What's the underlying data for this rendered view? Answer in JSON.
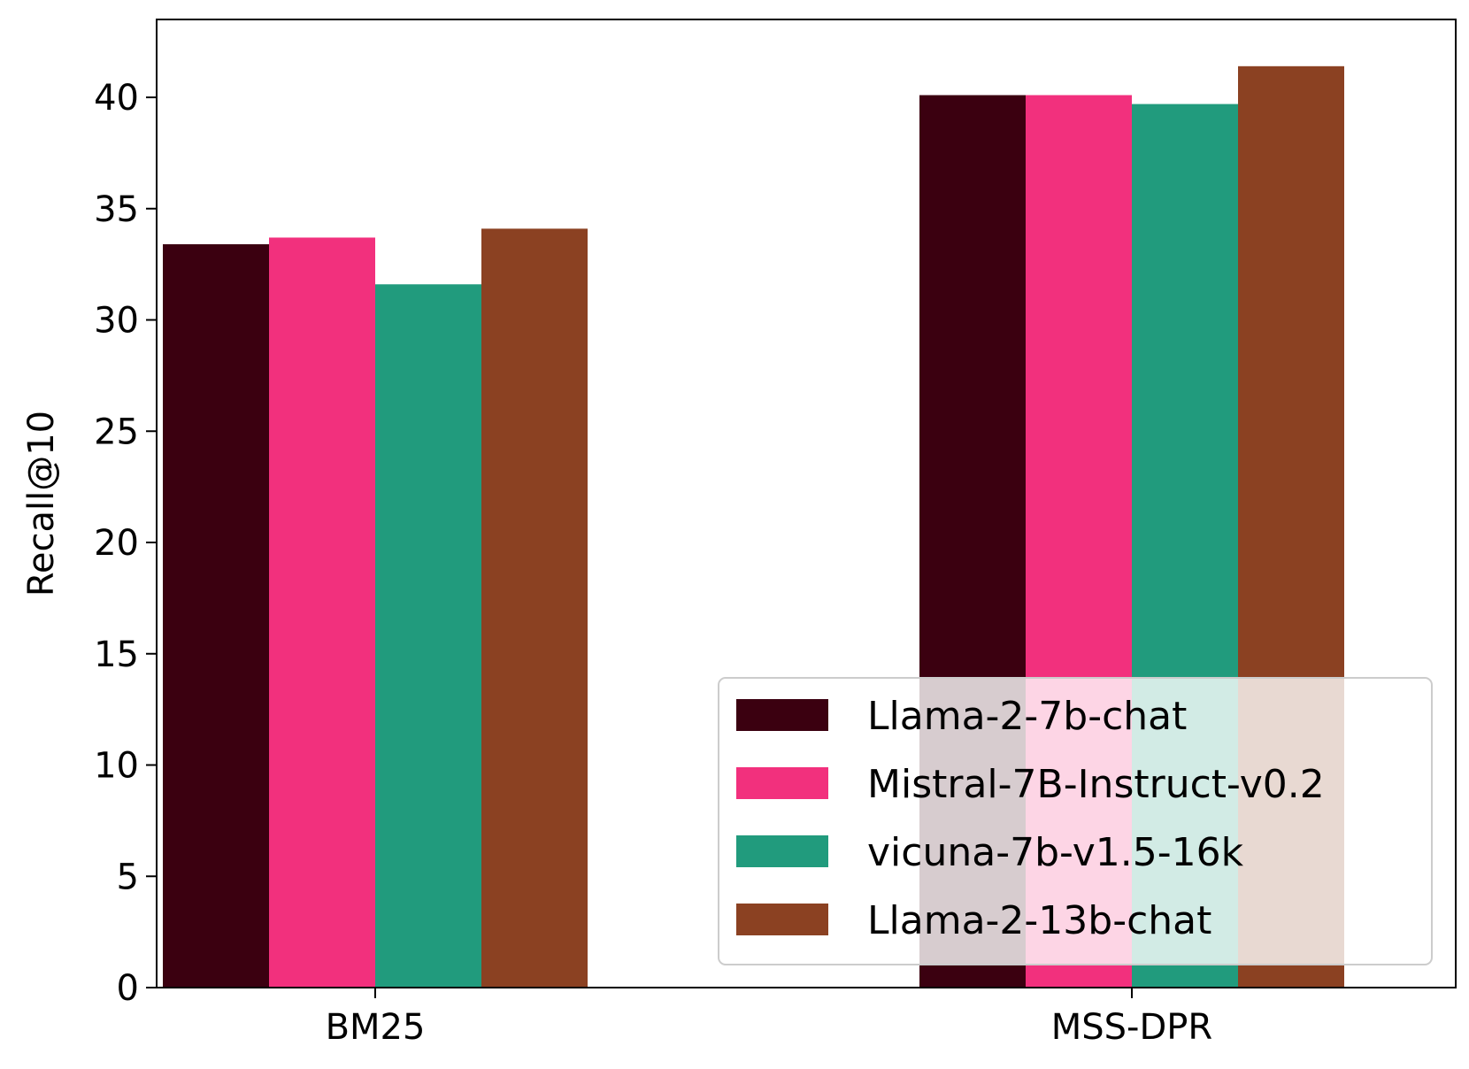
{
  "chart_data": {
    "type": "bar",
    "title": "",
    "xlabel": "",
    "ylabel": "Recall@10",
    "categories": [
      "BM25",
      "MSS-DPR"
    ],
    "series": [
      {
        "name": "Llama-2-7b-chat",
        "values": [
          33.4,
          40.1
        ],
        "color": "#3b0010"
      },
      {
        "name": "Mistral-7B-Instruct-v0.2",
        "values": [
          33.7,
          40.1
        ],
        "color": "#f2307d"
      },
      {
        "name": "vicuna-7b-v1.5-16k",
        "values": [
          31.6,
          39.7
        ],
        "color": "#219b7d"
      },
      {
        "name": "Llama-2-13b-chat",
        "values": [
          34.1,
          41.4
        ],
        "color": "#8b4122"
      }
    ],
    "ylim": [
      0,
      43.5
    ],
    "yticks": [
      0,
      5,
      10,
      15,
      20,
      25,
      30,
      35,
      40
    ],
    "grid": false,
    "legend_position": "lower-right"
  }
}
